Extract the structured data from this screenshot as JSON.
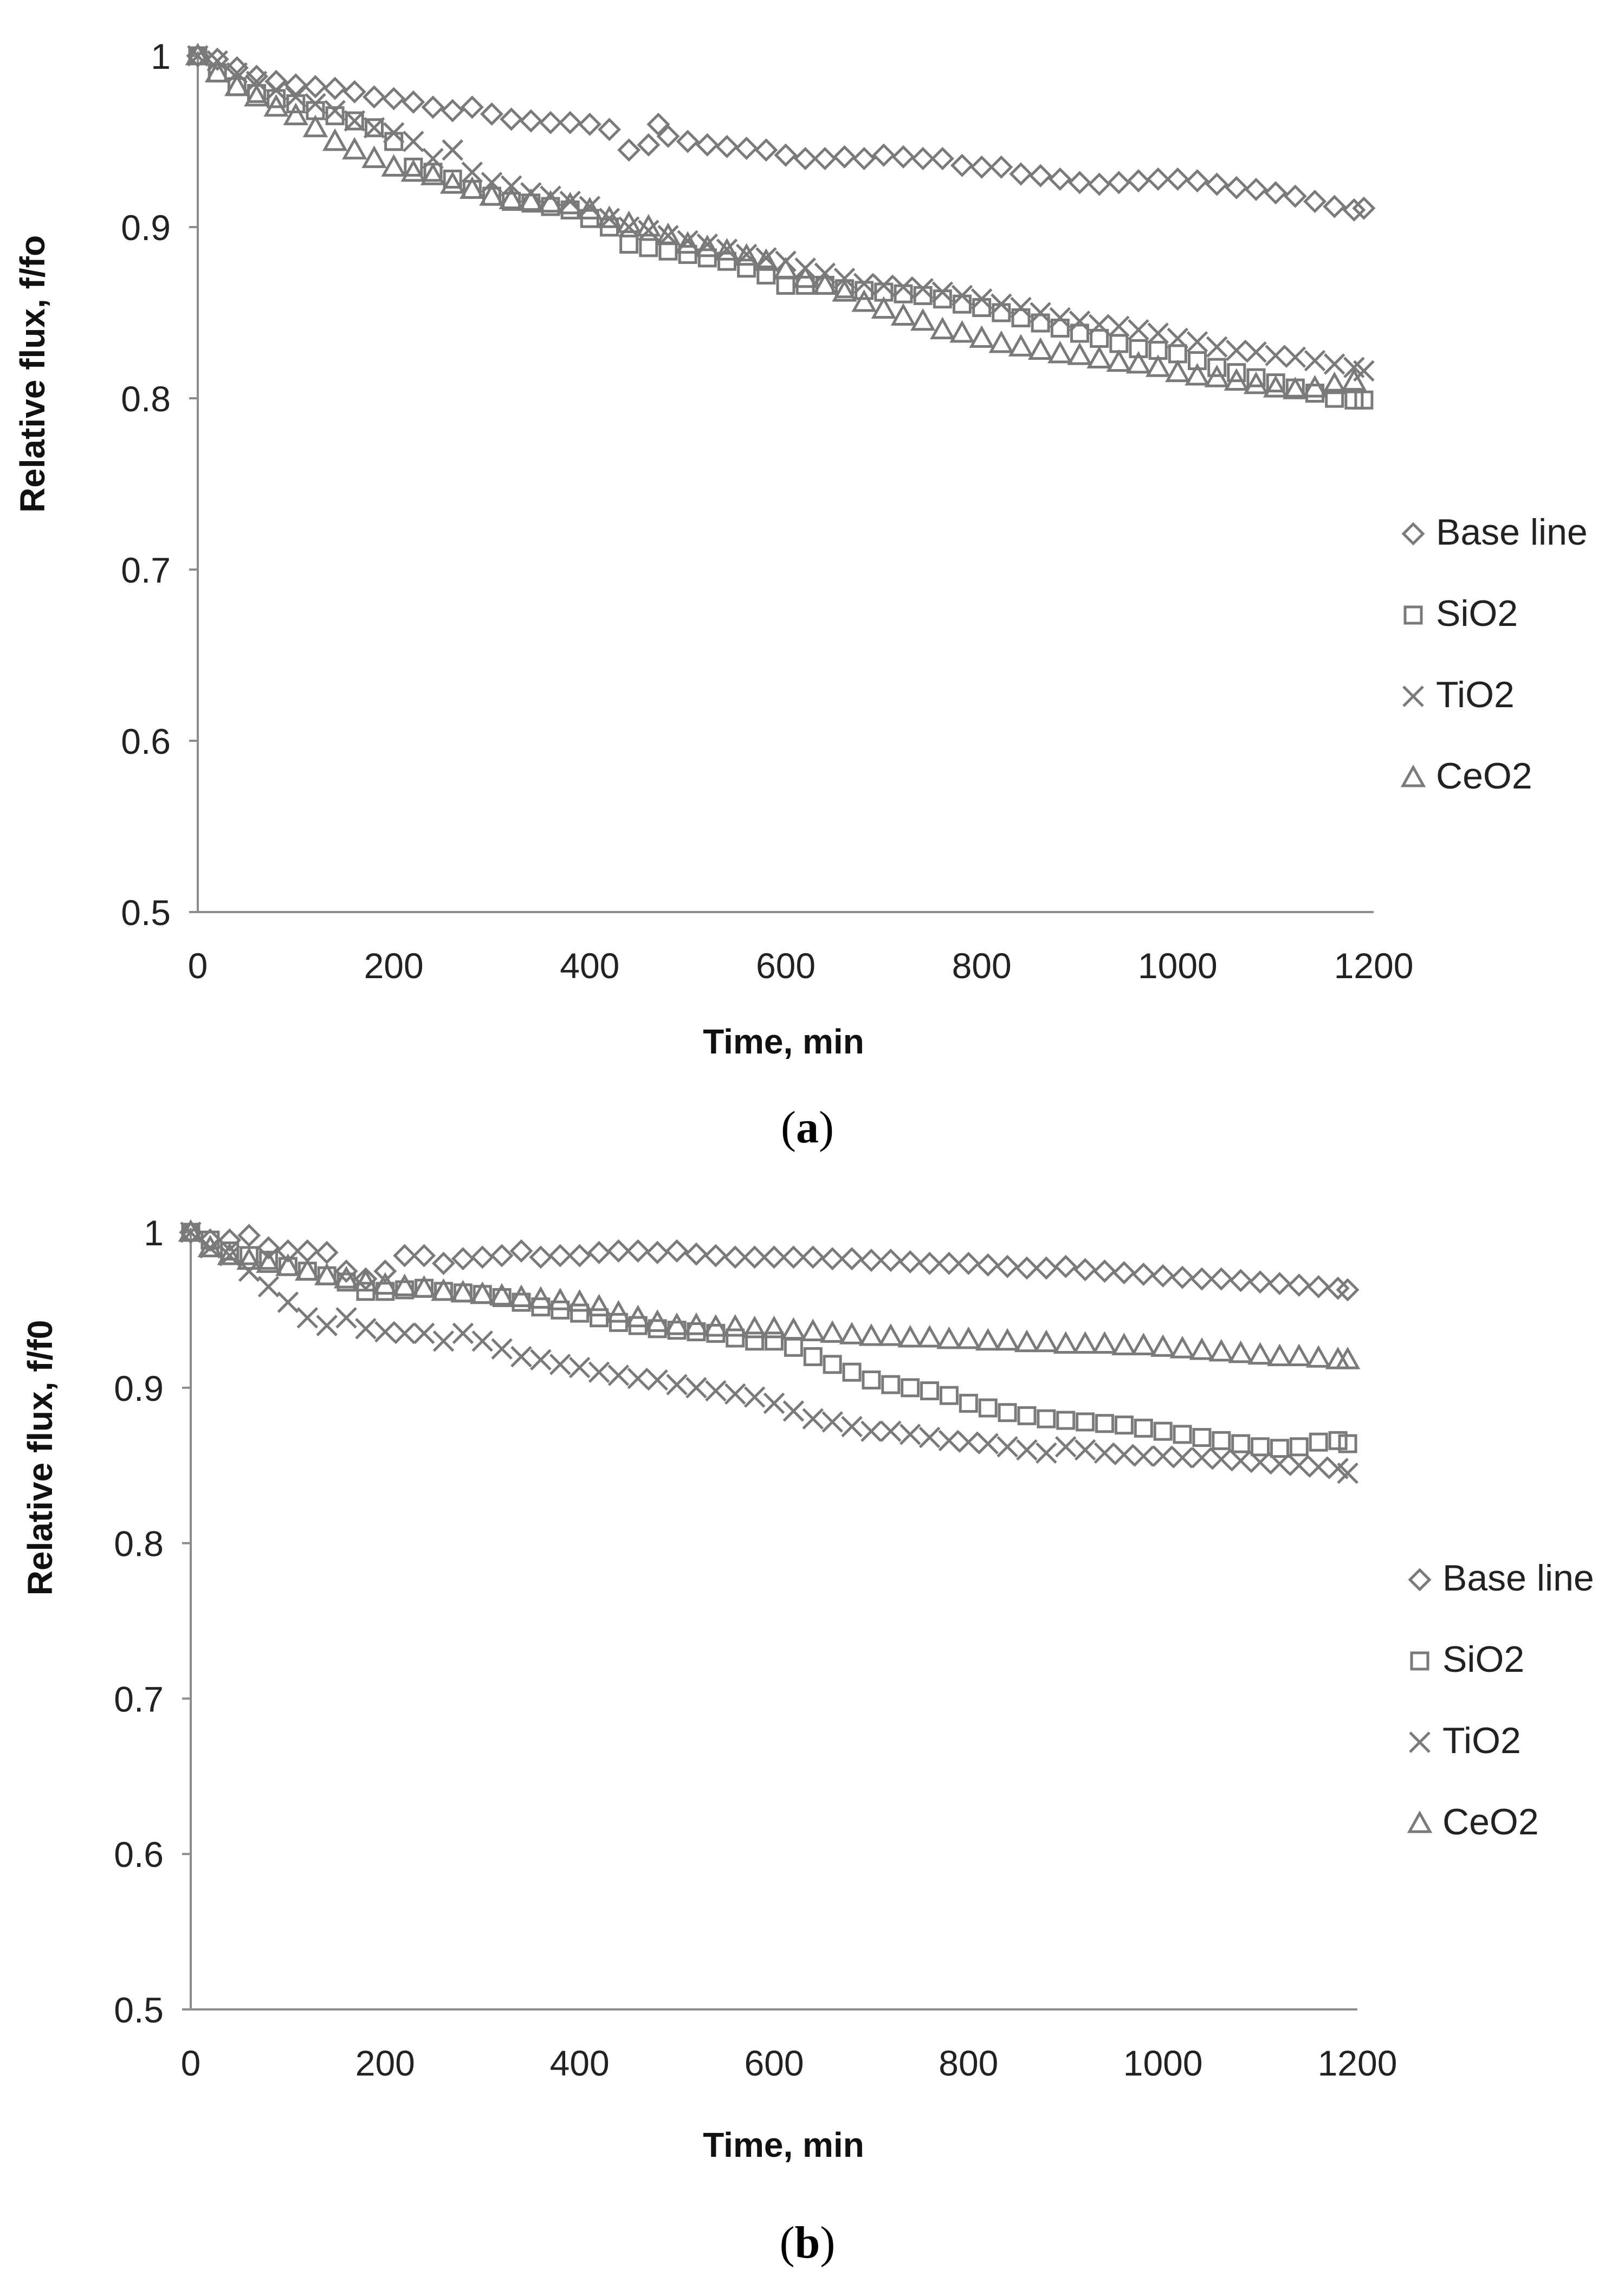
{
  "chart_data": [
    {
      "type": "scatter",
      "panel_label": "a",
      "xlabel": "Time, min",
      "ylabel": "Relative flux, f/fo",
      "xlim": [
        0,
        1200
      ],
      "ylim": [
        0.5,
        1.0
      ],
      "x_ticks": [
        "0",
        "200",
        "400",
        "600",
        "800",
        "1000",
        "1200"
      ],
      "y_ticks": [
        "0.5",
        "0.6",
        "0.7",
        "0.8",
        "0.9",
        "1"
      ],
      "legend_position": "right",
      "series": [
        {
          "name": "Base line",
          "marker": "diamond",
          "x": [
            0,
            20,
            40,
            60,
            80,
            100,
            120,
            140,
            160,
            180,
            200,
            220,
            240,
            260,
            280,
            300,
            320,
            340,
            360,
            380,
            400,
            420,
            440,
            460,
            470,
            480,
            500,
            520,
            540,
            560,
            580,
            600,
            620,
            640,
            660,
            680,
            700,
            720,
            740,
            760,
            780,
            800,
            820,
            840,
            860,
            880,
            900,
            920,
            940,
            960,
            980,
            1000,
            1020,
            1040,
            1060,
            1080,
            1100,
            1120,
            1140,
            1160,
            1180,
            1190
          ],
          "y": [
            1.0,
            0.998,
            0.993,
            0.988,
            0.985,
            0.983,
            0.982,
            0.981,
            0.979,
            0.976,
            0.975,
            0.973,
            0.97,
            0.968,
            0.97,
            0.966,
            0.963,
            0.962,
            0.961,
            0.961,
            0.96,
            0.957,
            0.945,
            0.948,
            0.96,
            0.953,
            0.95,
            0.948,
            0.947,
            0.946,
            0.945,
            0.942,
            0.94,
            0.94,
            0.941,
            0.94,
            0.942,
            0.941,
            0.94,
            0.94,
            0.936,
            0.935,
            0.935,
            0.931,
            0.93,
            0.928,
            0.926,
            0.925,
            0.926,
            0.927,
            0.928,
            0.928,
            0.927,
            0.925,
            0.923,
            0.922,
            0.92,
            0.918,
            0.915,
            0.912,
            0.91,
            0.911
          ]
        },
        {
          "name": "SiO2",
          "marker": "square",
          "x": [
            0,
            20,
            40,
            60,
            80,
            100,
            120,
            140,
            160,
            180,
            200,
            220,
            240,
            260,
            280,
            300,
            320,
            340,
            360,
            380,
            400,
            420,
            440,
            460,
            480,
            500,
            520,
            540,
            560,
            580,
            600,
            620,
            640,
            660,
            680,
            700,
            720,
            740,
            760,
            780,
            800,
            820,
            840,
            860,
            880,
            900,
            920,
            940,
            960,
            980,
            1000,
            1020,
            1040,
            1060,
            1080,
            1100,
            1120,
            1140,
            1160,
            1180,
            1190
          ],
          "y": [
            1.0,
            0.99,
            0.982,
            0.978,
            0.975,
            0.972,
            0.968,
            0.965,
            0.962,
            0.958,
            0.95,
            0.935,
            0.932,
            0.928,
            0.922,
            0.918,
            0.915,
            0.914,
            0.912,
            0.91,
            0.905,
            0.9,
            0.89,
            0.888,
            0.886,
            0.884,
            0.882,
            0.88,
            0.876,
            0.872,
            0.866,
            0.866,
            0.866,
            0.864,
            0.863,
            0.862,
            0.861,
            0.86,
            0.858,
            0.855,
            0.853,
            0.85,
            0.847,
            0.844,
            0.841,
            0.838,
            0.835,
            0.832,
            0.829,
            0.828,
            0.826,
            0.822,
            0.818,
            0.815,
            0.812,
            0.809,
            0.806,
            0.803,
            0.8,
            0.799,
            0.799
          ]
        },
        {
          "name": "TiO2",
          "marker": "cross",
          "x": [
            0,
            20,
            40,
            60,
            80,
            100,
            120,
            140,
            160,
            180,
            200,
            220,
            240,
            260,
            280,
            300,
            320,
            340,
            360,
            380,
            400,
            420,
            440,
            460,
            480,
            500,
            520,
            540,
            560,
            580,
            600,
            620,
            640,
            660,
            680,
            700,
            720,
            740,
            760,
            780,
            800,
            820,
            840,
            860,
            880,
            900,
            920,
            940,
            960,
            980,
            1000,
            1020,
            1040,
            1060,
            1080,
            1100,
            1120,
            1140,
            1160,
            1180,
            1190
          ],
          "y": [
            1.0,
            0.997,
            0.99,
            0.985,
            0.98,
            0.976,
            0.972,
            0.968,
            0.962,
            0.958,
            0.955,
            0.95,
            0.94,
            0.945,
            0.932,
            0.926,
            0.924,
            0.92,
            0.918,
            0.915,
            0.912,
            0.905,
            0.9,
            0.898,
            0.895,
            0.892,
            0.89,
            0.887,
            0.884,
            0.882,
            0.88,
            0.876,
            0.873,
            0.87,
            0.867,
            0.866,
            0.865,
            0.864,
            0.862,
            0.86,
            0.858,
            0.855,
            0.853,
            0.85,
            0.847,
            0.845,
            0.843,
            0.842,
            0.84,
            0.838,
            0.835,
            0.833,
            0.83,
            0.828,
            0.827,
            0.825,
            0.824,
            0.822,
            0.82,
            0.818,
            0.816
          ]
        },
        {
          "name": "CeO2",
          "marker": "triangle",
          "x": [
            0,
            20,
            40,
            60,
            80,
            100,
            120,
            140,
            160,
            180,
            200,
            220,
            240,
            260,
            280,
            300,
            320,
            340,
            360,
            380,
            400,
            420,
            440,
            460,
            480,
            500,
            520,
            540,
            560,
            580,
            600,
            620,
            640,
            660,
            680,
            700,
            720,
            740,
            760,
            780,
            800,
            820,
            840,
            860,
            880,
            900,
            920,
            940,
            960,
            980,
            1000,
            1020,
            1040,
            1060,
            1080,
            1100,
            1120,
            1140,
            1160,
            1180
          ],
          "y": [
            1.0,
            0.99,
            0.982,
            0.976,
            0.97,
            0.965,
            0.958,
            0.95,
            0.945,
            0.94,
            0.935,
            0.932,
            0.93,
            0.925,
            0.922,
            0.918,
            0.916,
            0.915,
            0.914,
            0.913,
            0.91,
            0.905,
            0.902,
            0.9,
            0.895,
            0.89,
            0.888,
            0.886,
            0.883,
            0.88,
            0.875,
            0.87,
            0.866,
            0.862,
            0.856,
            0.852,
            0.848,
            0.845,
            0.84,
            0.838,
            0.835,
            0.832,
            0.83,
            0.828,
            0.826,
            0.825,
            0.823,
            0.821,
            0.82,
            0.818,
            0.815,
            0.813,
            0.812,
            0.81,
            0.808,
            0.806,
            0.805,
            0.806,
            0.808,
            0.81
          ]
        }
      ]
    },
    {
      "type": "scatter",
      "panel_label": "b",
      "xlabel": "Time, min",
      "ylabel": "Relative flux, f/f0",
      "xlim": [
        0,
        1200
      ],
      "ylim": [
        0.5,
        1.0
      ],
      "x_ticks": [
        "0",
        "200",
        "400",
        "600",
        "800",
        "1000",
        "1200"
      ],
      "y_ticks": [
        "0.5",
        "0.6",
        "0.7",
        "0.8",
        "0.9",
        "1"
      ],
      "legend_position": "right",
      "series": [
        {
          "name": "Base line",
          "marker": "diamond",
          "x": [
            0,
            20,
            40,
            60,
            80,
            100,
            120,
            140,
            160,
            180,
            200,
            220,
            240,
            260,
            280,
            300,
            320,
            340,
            360,
            380,
            400,
            420,
            440,
            460,
            480,
            500,
            520,
            540,
            560,
            580,
            600,
            620,
            640,
            660,
            680,
            700,
            720,
            740,
            760,
            780,
            800,
            820,
            840,
            860,
            880,
            900,
            920,
            940,
            960,
            980,
            1000,
            1020,
            1040,
            1060,
            1080,
            1100,
            1120,
            1140,
            1160,
            1180,
            1190
          ],
          "y": [
            1.0,
            0.995,
            0.995,
            0.998,
            0.99,
            0.988,
            0.988,
            0.987,
            0.975,
            0.97,
            0.975,
            0.985,
            0.985,
            0.98,
            0.983,
            0.984,
            0.985,
            0.988,
            0.984,
            0.985,
            0.985,
            0.987,
            0.988,
            0.988,
            0.987,
            0.988,
            0.986,
            0.985,
            0.984,
            0.984,
            0.984,
            0.984,
            0.984,
            0.983,
            0.983,
            0.982,
            0.982,
            0.981,
            0.98,
            0.98,
            0.98,
            0.979,
            0.978,
            0.977,
            0.977,
            0.978,
            0.976,
            0.975,
            0.974,
            0.973,
            0.972,
            0.971,
            0.97,
            0.97,
            0.969,
            0.968,
            0.967,
            0.966,
            0.965,
            0.964,
            0.963
          ]
        },
        {
          "name": "SiO2",
          "marker": "square",
          "x": [
            0,
            20,
            40,
            60,
            80,
            100,
            120,
            140,
            160,
            180,
            200,
            220,
            240,
            260,
            280,
            300,
            320,
            340,
            360,
            380,
            400,
            420,
            440,
            460,
            480,
            500,
            520,
            540,
            560,
            580,
            600,
            620,
            640,
            660,
            680,
            700,
            720,
            740,
            760,
            780,
            800,
            820,
            840,
            860,
            880,
            900,
            920,
            940,
            960,
            980,
            1000,
            1020,
            1040,
            1060,
            1080,
            1100,
            1120,
            1140,
            1160,
            1180,
            1190
          ],
          "y": [
            1.0,
            0.995,
            0.988,
            0.985,
            0.982,
            0.978,
            0.975,
            0.972,
            0.968,
            0.962,
            0.962,
            0.963,
            0.964,
            0.962,
            0.961,
            0.96,
            0.958,
            0.955,
            0.952,
            0.95,
            0.948,
            0.945,
            0.942,
            0.94,
            0.938,
            0.937,
            0.936,
            0.935,
            0.932,
            0.93,
            0.93,
            0.926,
            0.92,
            0.915,
            0.91,
            0.905,
            0.902,
            0.9,
            0.898,
            0.895,
            0.89,
            0.887,
            0.884,
            0.882,
            0.88,
            0.879,
            0.878,
            0.877,
            0.876,
            0.874,
            0.872,
            0.87,
            0.868,
            0.866,
            0.864,
            0.862,
            0.861,
            0.862,
            0.865,
            0.866,
            0.864
          ]
        },
        {
          "name": "TiO2",
          "marker": "cross",
          "x": [
            0,
            20,
            40,
            60,
            80,
            100,
            120,
            140,
            160,
            180,
            200,
            220,
            240,
            260,
            280,
            300,
            320,
            340,
            360,
            380,
            400,
            420,
            440,
            460,
            480,
            500,
            520,
            540,
            560,
            580,
            600,
            620,
            640,
            660,
            680,
            700,
            720,
            740,
            760,
            780,
            800,
            820,
            840,
            860,
            880,
            900,
            920,
            940,
            960,
            980,
            1000,
            1020,
            1040,
            1060,
            1080,
            1100,
            1120,
            1140,
            1160,
            1180,
            1190
          ],
          "y": [
            1.0,
            0.99,
            0.985,
            0.975,
            0.965,
            0.955,
            0.945,
            0.94,
            0.945,
            0.938,
            0.936,
            0.935,
            0.935,
            0.93,
            0.935,
            0.93,
            0.925,
            0.92,
            0.918,
            0.915,
            0.913,
            0.91,
            0.908,
            0.906,
            0.905,
            0.902,
            0.9,
            0.898,
            0.896,
            0.894,
            0.89,
            0.885,
            0.88,
            0.878,
            0.875,
            0.872,
            0.872,
            0.87,
            0.868,
            0.866,
            0.865,
            0.864,
            0.862,
            0.86,
            0.858,
            0.862,
            0.86,
            0.858,
            0.857,
            0.856,
            0.856,
            0.855,
            0.855,
            0.854,
            0.853,
            0.852,
            0.851,
            0.85,
            0.849,
            0.848,
            0.845
          ]
        },
        {
          "name": "CeO2",
          "marker": "triangle",
          "x": [
            0,
            20,
            40,
            60,
            80,
            100,
            120,
            140,
            160,
            180,
            200,
            220,
            240,
            260,
            280,
            300,
            320,
            340,
            360,
            380,
            400,
            420,
            440,
            460,
            480,
            500,
            520,
            540,
            560,
            580,
            600,
            620,
            640,
            660,
            680,
            700,
            720,
            740,
            760,
            780,
            800,
            820,
            840,
            860,
            880,
            900,
            920,
            940,
            960,
            980,
            1000,
            1020,
            1040,
            1060,
            1080,
            1100,
            1120,
            1140,
            1160,
            1180,
            1190
          ],
          "y": [
            1.0,
            0.99,
            0.985,
            0.982,
            0.98,
            0.978,
            0.975,
            0.972,
            0.97,
            0.968,
            0.966,
            0.965,
            0.964,
            0.962,
            0.961,
            0.96,
            0.959,
            0.958,
            0.957,
            0.956,
            0.955,
            0.952,
            0.948,
            0.945,
            0.942,
            0.94,
            0.94,
            0.939,
            0.939,
            0.938,
            0.938,
            0.937,
            0.936,
            0.935,
            0.934,
            0.933,
            0.933,
            0.932,
            0.932,
            0.931,
            0.931,
            0.93,
            0.93,
            0.929,
            0.929,
            0.928,
            0.928,
            0.928,
            0.927,
            0.927,
            0.926,
            0.925,
            0.924,
            0.923,
            0.922,
            0.921,
            0.92,
            0.92,
            0.919,
            0.918,
            0.918
          ]
        }
      ]
    }
  ]
}
